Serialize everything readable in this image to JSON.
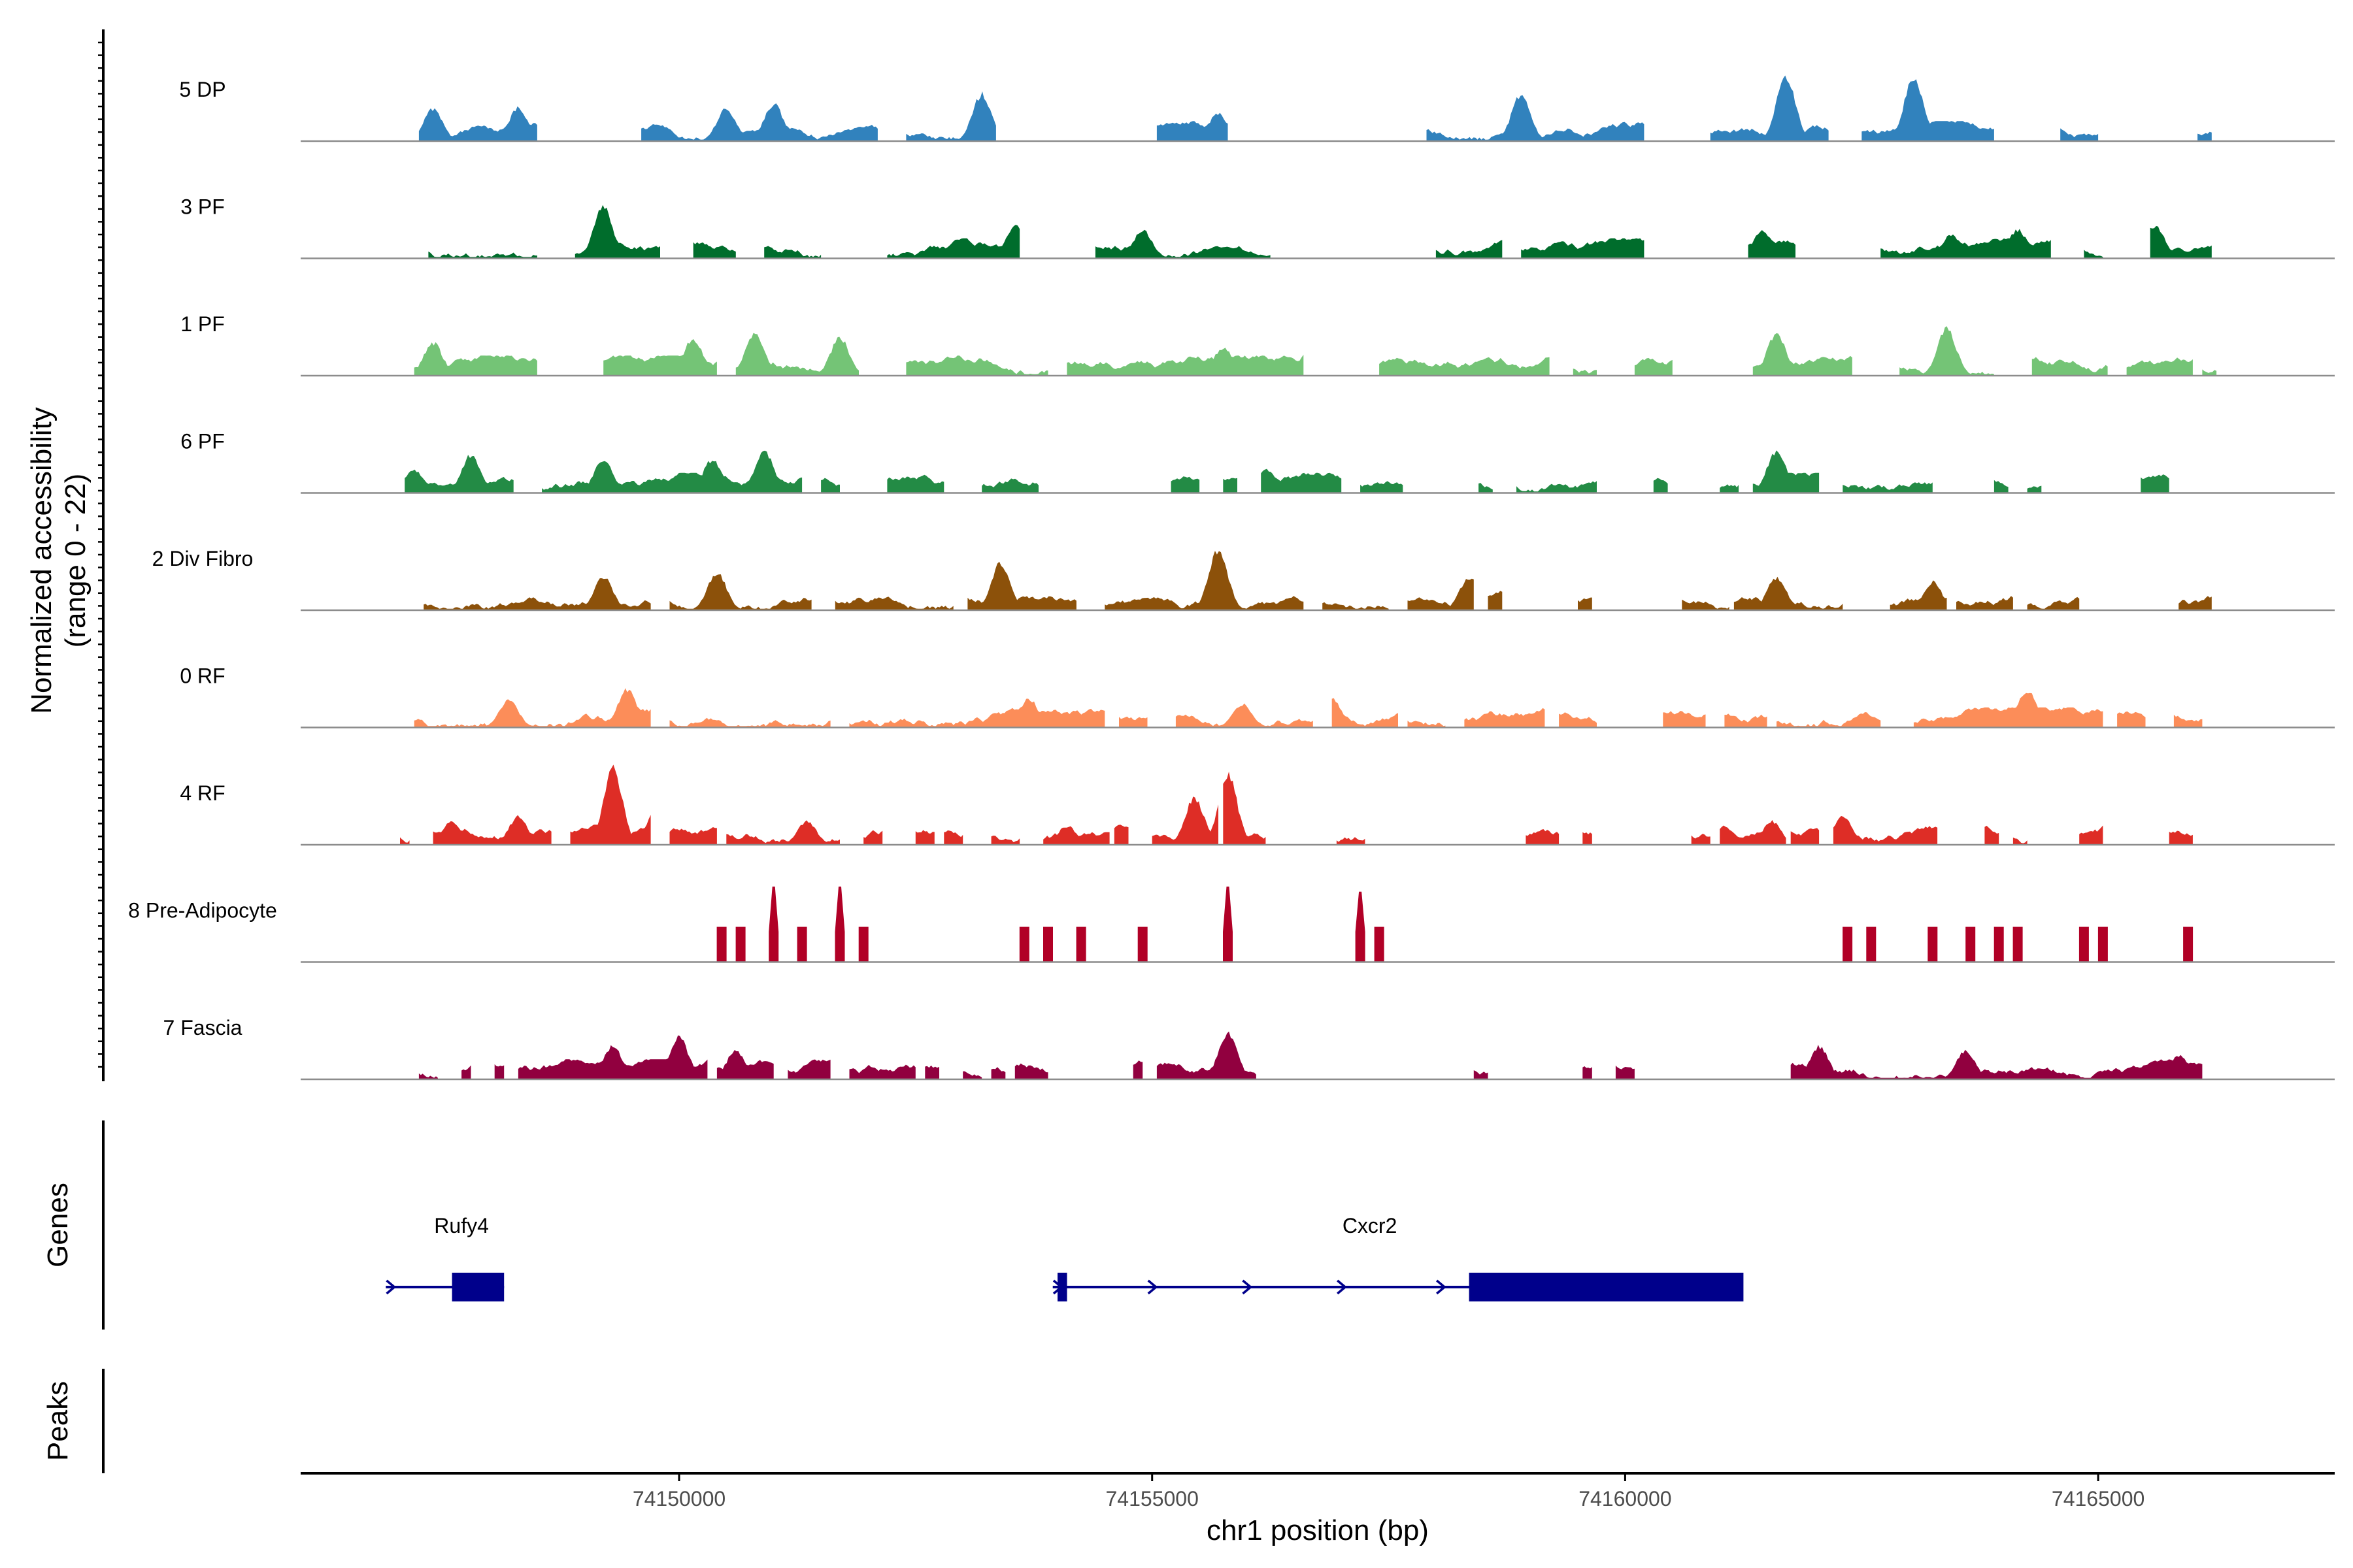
{
  "chart_data": {
    "type": "coverage-track",
    "y_axis_title_line1": "Normalized accessibility",
    "y_axis_title_line2": "(range 0 - 22)",
    "y_range": [
      0,
      22
    ],
    "x_axis_title": "chr1 position (bp)",
    "x_range": [
      74146000,
      74167500
    ],
    "x_ticks": [
      74150000,
      74155000,
      74160000,
      74165000
    ],
    "x_tick_labels": [
      "74150000",
      "74155000",
      "74160000",
      "74165000"
    ],
    "genes_label": "Genes",
    "peaks_label": "Peaks",
    "tracks": [
      {
        "name": "5 DP",
        "color": "#3182bd",
        "seed": 11,
        "regions": [
          [
            74147250,
            74148500
          ],
          [
            74149600,
            74152100
          ],
          [
            74152400,
            74153350
          ],
          [
            74155050,
            74155800
          ],
          [
            74157900,
            74160200
          ],
          [
            74160900,
            74162150
          ],
          [
            74162500,
            74163900
          ],
          [
            74164600,
            74165000
          ],
          [
            74166050,
            74166200
          ]
        ],
        "peaks": [
          [
            74147400,
            7
          ],
          [
            74148300,
            7
          ],
          [
            74150500,
            7
          ],
          [
            74151000,
            8
          ],
          [
            74153200,
            10
          ],
          [
            74155700,
            6
          ],
          [
            74158900,
            10
          ],
          [
            74160400,
            9
          ],
          [
            74161700,
            14
          ],
          [
            74163050,
            14
          ]
        ]
      },
      {
        "name": "3 PF",
        "color": "#006d2c",
        "seed": 23,
        "regions": [
          [
            74147350,
            74148500
          ],
          [
            74148900,
            74149800
          ],
          [
            74150150,
            74150600
          ],
          [
            74150900,
            74151500
          ],
          [
            74152200,
            74153600
          ],
          [
            74154400,
            74156250
          ],
          [
            74158000,
            74158700
          ],
          [
            74158900,
            74160200
          ],
          [
            74161300,
            74161800
          ],
          [
            74162700,
            74164500
          ],
          [
            74164850,
            74165050
          ],
          [
            74165550,
            74166200
          ]
        ],
        "peaks": [
          [
            74149200,
            11
          ],
          [
            74153550,
            7
          ],
          [
            74154900,
            6
          ],
          [
            74156600,
            7
          ],
          [
            74161450,
            6
          ],
          [
            74163450,
            5
          ],
          [
            74164150,
            6
          ],
          [
            74165600,
            7
          ]
        ]
      },
      {
        "name": "1 PF",
        "color": "#74c476",
        "seed": 37,
        "regions": [
          [
            74147200,
            74148500
          ],
          [
            74149200,
            74150400
          ],
          [
            74150600,
            74151900
          ],
          [
            74152400,
            74153900
          ],
          [
            74154100,
            74156600
          ],
          [
            74157400,
            74159200
          ],
          [
            74159450,
            74159700
          ],
          [
            74160100,
            74160500
          ],
          [
            74161350,
            74162400
          ],
          [
            74162900,
            74163900
          ],
          [
            74164300,
            74165100
          ],
          [
            74165300,
            74166000
          ],
          [
            74166100,
            74166250
          ]
        ],
        "peaks": [
          [
            74147400,
            7
          ],
          [
            74150150,
            8
          ],
          [
            74150800,
            9
          ],
          [
            74151700,
            8
          ],
          [
            74155750,
            6
          ],
          [
            74156700,
            8
          ],
          [
            74161600,
            9
          ],
          [
            74163400,
            10
          ]
        ]
      },
      {
        "name": "6 PF",
        "color": "#238b45",
        "seed": 41,
        "regions": [
          [
            74147100,
            74148250
          ],
          [
            74148550,
            74151300
          ],
          [
            74151500,
            74151700
          ],
          [
            74152200,
            74152800
          ],
          [
            74153200,
            74153800
          ],
          [
            74155200,
            74155500
          ],
          [
            74155750,
            74155900
          ],
          [
            74156150,
            74157000
          ],
          [
            74157200,
            74157650
          ],
          [
            74158450,
            74158600
          ],
          [
            74158850,
            74159700
          ],
          [
            74160300,
            74160450
          ],
          [
            74161000,
            74161200
          ],
          [
            74161350,
            74162050
          ],
          [
            74162300,
            74163250
          ],
          [
            74163900,
            74164050
          ],
          [
            74164250,
            74164400
          ],
          [
            74165450,
            74165750
          ]
        ],
        "peaks": [
          [
            74147200,
            5
          ],
          [
            74147800,
            8
          ],
          [
            74149200,
            7
          ],
          [
            74150350,
            7
          ],
          [
            74150900,
            9
          ],
          [
            74156200,
            5
          ],
          [
            74161600,
            9
          ]
        ]
      },
      {
        "name": "2 Div Fibro",
        "color": "#8c510a",
        "seed": 53,
        "regions": [
          [
            74147300,
            74149700
          ],
          [
            74149900,
            74151400
          ],
          [
            74151650,
            74152900
          ],
          [
            74153050,
            74154200
          ],
          [
            74154500,
            74156600
          ],
          [
            74156800,
            74157500
          ],
          [
            74157700,
            74158400
          ],
          [
            74158550,
            74158700
          ],
          [
            74159500,
            74159650
          ],
          [
            74160600,
            74161100
          ],
          [
            74161150,
            74162300
          ],
          [
            74162800,
            74163400
          ],
          [
            74163500,
            74164100
          ],
          [
            74164250,
            74164800
          ],
          [
            74165850,
            74166200
          ]
        ],
        "peaks": [
          [
            74149200,
            7
          ],
          [
            74150400,
            8
          ],
          [
            74153400,
            10
          ],
          [
            74155700,
            13
          ],
          [
            74158350,
            7
          ],
          [
            74161600,
            7
          ],
          [
            74163250,
            6
          ]
        ]
      },
      {
        "name": "0 RF",
        "color": "#fc8d59",
        "seed": 67,
        "regions": [
          [
            74147200,
            74149700
          ],
          [
            74149900,
            74151600
          ],
          [
            74151800,
            74154500
          ],
          [
            74154650,
            74154950
          ],
          [
            74155250,
            74156700
          ],
          [
            74156900,
            74157600
          ],
          [
            74157700,
            74158100
          ],
          [
            74158300,
            74159150
          ],
          [
            74159300,
            74159700
          ],
          [
            74160400,
            74160850
          ],
          [
            74161050,
            74161500
          ],
          [
            74161600,
            74162700
          ],
          [
            74163050,
            74165050
          ],
          [
            74165200,
            74165500
          ],
          [
            74165800,
            74166100
          ]
        ],
        "peaks": [
          [
            74148200,
            6
          ],
          [
            74149450,
            8
          ],
          [
            74153700,
            6
          ],
          [
            74155950,
            5
          ],
          [
            74156900,
            6
          ],
          [
            74164250,
            8
          ]
        ]
      },
      {
        "name": "4 RF",
        "color": "#de2d26",
        "seed": 79,
        "regions": [
          [
            74147050,
            74147150
          ],
          [
            74147400,
            74148650
          ],
          [
            74148850,
            74149700
          ],
          [
            74149900,
            74150400
          ],
          [
            74150500,
            74151700
          ],
          [
            74151950,
            74152150
          ],
          [
            74152500,
            74152700
          ],
          [
            74152800,
            74153000
          ],
          [
            74153300,
            74153600
          ],
          [
            74153850,
            74154550
          ],
          [
            74154600,
            74154750
          ],
          [
            74155000,
            74155700
          ],
          [
            74155750,
            74156200
          ],
          [
            74156950,
            74157250
          ],
          [
            74158950,
            74159300
          ],
          [
            74159550,
            74159650
          ],
          [
            74160700,
            74160900
          ],
          [
            74161000,
            74161700
          ],
          [
            74161750,
            74162050
          ],
          [
            74162200,
            74163300
          ],
          [
            74163800,
            74163950
          ],
          [
            74164100,
            74164250
          ],
          [
            74164800,
            74165050
          ],
          [
            74165750,
            74166000
          ]
        ],
        "peaks": [
          [
            74147600,
            5
          ],
          [
            74148300,
            6
          ],
          [
            74149300,
            16
          ],
          [
            74149750,
            7
          ],
          [
            74151350,
            5
          ],
          [
            74154100,
            4
          ],
          [
            74155450,
            10
          ],
          [
            74155800,
            15
          ],
          [
            74161550,
            5
          ],
          [
            74162300,
            6
          ],
          [
            74163800,
            4
          ]
        ]
      },
      {
        "name": "8 Pre-Adipocyte",
        "color": "#b10026",
        "seed": 83,
        "regions": [],
        "peaks": [],
        "bars": [
          [
            74150450,
            7
          ],
          [
            74150650,
            7
          ],
          [
            74151000,
            15
          ],
          [
            74151300,
            7
          ],
          [
            74151700,
            15
          ],
          [
            74151950,
            7
          ],
          [
            74153650,
            7
          ],
          [
            74153900,
            7
          ],
          [
            74154250,
            7
          ],
          [
            74154900,
            7
          ],
          [
            74155800,
            15
          ],
          [
            74157200,
            14
          ],
          [
            74157400,
            7
          ],
          [
            74162350,
            7
          ],
          [
            74162600,
            7
          ],
          [
            74163250,
            7
          ],
          [
            74163650,
            7
          ],
          [
            74163950,
            7
          ],
          [
            74164150,
            7
          ],
          [
            74164850,
            7
          ],
          [
            74165050,
            7
          ],
          [
            74165950,
            7
          ]
        ]
      },
      {
        "name": "7 Fascia",
        "color": "#91003f",
        "seed": 97,
        "regions": [
          [
            74147250,
            74147450
          ],
          [
            74147700,
            74147800
          ],
          [
            74148050,
            74148150
          ],
          [
            74148300,
            74150300
          ],
          [
            74150400,
            74151000
          ],
          [
            74151150,
            74151600
          ],
          [
            74151800,
            74152500
          ],
          [
            74152600,
            74152750
          ],
          [
            74153000,
            74153200
          ],
          [
            74153300,
            74153450
          ],
          [
            74153550,
            74153900
          ],
          [
            74154800,
            74154900
          ],
          [
            74155050,
            74156100
          ],
          [
            74158400,
            74158550
          ],
          [
            74159550,
            74159650
          ],
          [
            74159900,
            74160100
          ],
          [
            74161750,
            74166100
          ]
        ],
        "peaks": [
          [
            74149300,
            7
          ],
          [
            74150000,
            9
          ],
          [
            74150600,
            6
          ],
          [
            74155800,
            10
          ],
          [
            74162050,
            7
          ],
          [
            74163600,
            6
          ],
          [
            74165850,
            5
          ]
        ]
      }
    ],
    "genes": [
      {
        "name": "Rufy4",
        "label_pos": 74147700,
        "line": [
          74146900,
          74148150
        ],
        "exons": [
          [
            74147600,
            74148150
          ]
        ],
        "arrows": [
          74146950
        ]
      },
      {
        "name": "Cxcr2",
        "label_pos": 74157300,
        "line": [
          74153950,
          74161200
        ],
        "exons": [
          [
            74154000,
            74154100
          ],
          [
            74158350,
            74161250
          ]
        ],
        "arrows": [
          74154000,
          74155000,
          74156000,
          74157000,
          74158050
        ]
      }
    ],
    "colors": {
      "baseline": "#8c8c8c",
      "gene": "#00008b",
      "axis": "#000000",
      "tick_label": "#4d4d4d"
    }
  }
}
